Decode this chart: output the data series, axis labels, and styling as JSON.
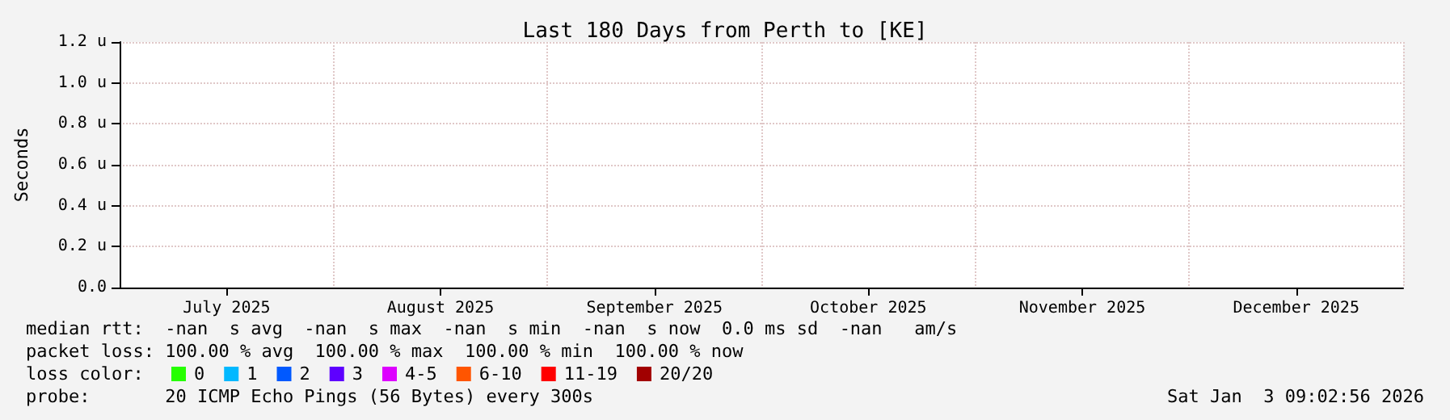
{
  "chart_data": {
    "type": "line",
    "title": "Last 180 Days from Perth to [KE]",
    "ylabel": "Seconds",
    "legend_title": "loss color:",
    "categories": [
      "July 2025",
      "August 2025",
      "September 2025",
      "October 2025",
      "November 2025",
      "December 2025"
    ],
    "ylim": [
      0,
      1.2
    ],
    "yticks": [
      {
        "value": 0,
        "label": "0.0"
      },
      {
        "value": 0.2,
        "label": "0.2 u"
      },
      {
        "value": 0.4,
        "label": "0.4 u"
      },
      {
        "value": 0.6,
        "label": "0.6 u"
      },
      {
        "value": 0.8,
        "label": "0.8 u"
      },
      {
        "value": 1.0,
        "label": "1.0 u"
      },
      {
        "value": 1.2,
        "label": "1.2 u"
      }
    ],
    "series": [
      {
        "name": "0",
        "color": "#26ff00",
        "values": [
          null,
          null,
          null,
          null,
          null,
          null
        ]
      },
      {
        "name": "1",
        "color": "#00b8ff",
        "values": [
          null,
          null,
          null,
          null,
          null,
          null
        ]
      },
      {
        "name": "2",
        "color": "#0059ff",
        "values": [
          null,
          null,
          null,
          null,
          null,
          null
        ]
      },
      {
        "name": "3",
        "color": "#5e00ff",
        "values": [
          null,
          null,
          null,
          null,
          null,
          null
        ]
      },
      {
        "name": "4-5",
        "color": "#dd00ff",
        "values": [
          null,
          null,
          null,
          null,
          null,
          null
        ]
      },
      {
        "name": "6-10",
        "color": "#ff5500",
        "values": [
          null,
          null,
          null,
          null,
          null,
          null
        ]
      },
      {
        "name": "11-19",
        "color": "#ff0000",
        "values": [
          null,
          null,
          null,
          null,
          null,
          null
        ]
      },
      {
        "name": "20/20",
        "color": "#a10000",
        "values": [
          null,
          null,
          null,
          null,
          null,
          null
        ]
      }
    ],
    "grid": true,
    "legend": "bottom",
    "annotations": [
      "median rtt:  -nan  s avg  -nan  s max  -nan  s min  -nan  s now  0.0 ms sd  -nan   am/s",
      "packet loss: 100.00 % avg  100.00 % max  100.00 % min  100.00 % now",
      "probe:       20 ICMP Echo Pings (56 Bytes) every 300s",
      "Sat Jan  3 09:02:56 2026"
    ]
  }
}
